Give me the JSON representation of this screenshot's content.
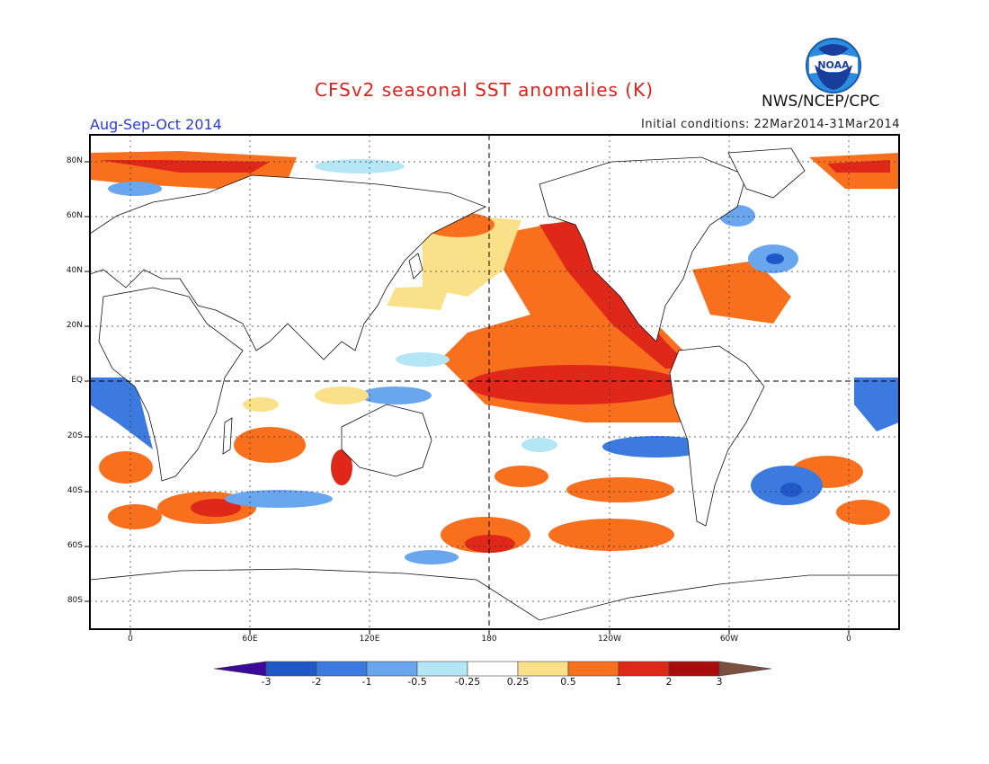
{
  "title": "CFSv2 seasonal SST anomalies (K)",
  "period": "Aug-Sep-Oct 2014",
  "initial_conditions": "Initial conditions: 22Mar2014-31Mar2014",
  "agency": "NWS/NCEP/CPC",
  "logo_text": "NOAA",
  "lat_labels": [
    "80N",
    "60N",
    "40N",
    "20N",
    "EQ",
    "20S",
    "40S",
    "60S",
    "80S"
  ],
  "lon_labels": [
    "0",
    "60E",
    "120E",
    "180",
    "120W",
    "60W",
    "0"
  ],
  "colorbar": {
    "ticks": [
      "-3",
      "-2",
      "-1",
      "-0.5",
      "-0.25",
      "0.25",
      "0.5",
      "1",
      "2",
      "3"
    ],
    "colors": [
      "#3c0a9a",
      "#2158c8",
      "#3c7ae0",
      "#6aa6ee",
      "#b4e6f6",
      "#ffffff",
      "#fbe08a",
      "#f8701e",
      "#e0281a",
      "#a80c0c",
      "#7a5040"
    ]
  },
  "colors": {
    "title": "#e0201a",
    "period": "#2a3cd2",
    "land": "#ffffff"
  }
}
